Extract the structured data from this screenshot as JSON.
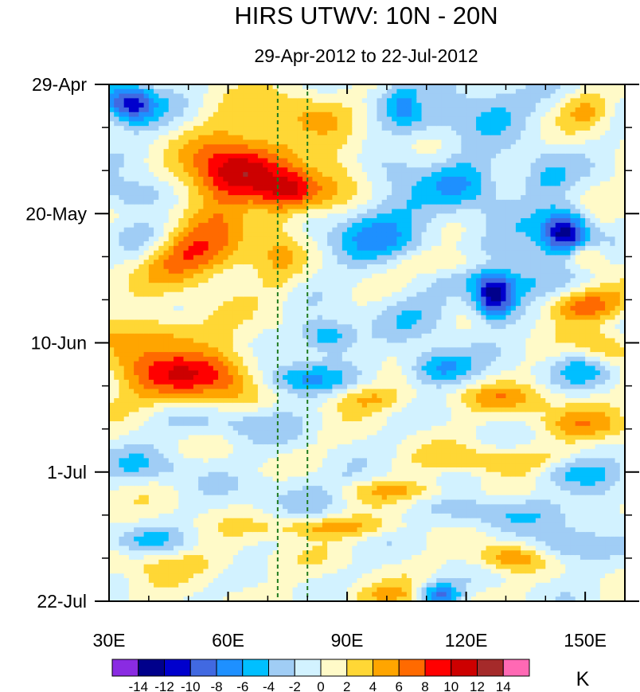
{
  "chart_data": {
    "type": "heatmap",
    "title": "HIRS UTWV: 10N - 20N",
    "subtitle": "29-Apr-2012 to 22-Jul-2012",
    "xlabel": "",
    "ylabel": "",
    "xlim": [
      30,
      160
    ],
    "x_ticks": [
      {
        "value": 30,
        "label": "30E"
      },
      {
        "value": 60,
        "label": "60E"
      },
      {
        "value": 90,
        "label": "90E"
      },
      {
        "value": 120,
        "label": "120E"
      },
      {
        "value": 150,
        "label": "150E"
      }
    ],
    "x_minor_ticks": [
      40,
      50,
      70,
      80,
      100,
      110,
      130,
      140
    ],
    "ylim_days": [
      0,
      84
    ],
    "y_ticks": [
      {
        "value": 0,
        "label": "29-Apr"
      },
      {
        "value": 21,
        "label": "20-May"
      },
      {
        "value": 42,
        "label": "10-Jun"
      },
      {
        "value": 63,
        "label": "1-Jul"
      },
      {
        "value": 84,
        "label": "22-Jul"
      }
    ],
    "y_minor_ticks": [
      7,
      14,
      28,
      35,
      49,
      56,
      70,
      77
    ],
    "reference_lines_lon": [
      72.5,
      80
    ],
    "reference_line_color": "#1e7a1e",
    "colorbar": {
      "unit": "K",
      "levels": [
        -14,
        -12,
        -10,
        -8,
        -6,
        -4,
        -2,
        0,
        2,
        4,
        6,
        8,
        10,
        12,
        14
      ],
      "labels": [
        "-14",
        "-12",
        "-10",
        "-8",
        "-6",
        "-4",
        "-2",
        "0",
        "2",
        "4",
        "6",
        "8",
        "10",
        "12",
        "14"
      ],
      "colors": [
        "#8a2be2",
        "#00008b",
        "#0000cd",
        "#4169e1",
        "#1e90ff",
        "#00bfff",
        "#a0cdf5",
        "#d2f2ff",
        "#fffac8",
        "#ffd735",
        "#ffa500",
        "#ff6a00",
        "#ff0000",
        "#cd0000",
        "#a52a2a",
        "#ff69b4"
      ]
    },
    "anomaly_features": [
      {
        "lon": 35,
        "day": 3,
        "value": -8,
        "sx": 4,
        "sy": 2
      },
      {
        "lon": 36,
        "day": 3.5,
        "value": -4,
        "sx": 7,
        "sy": 3
      },
      {
        "lon": 107,
        "day": 3,
        "value": -6,
        "sx": 6,
        "sy": 3
      },
      {
        "lon": 125,
        "day": 4,
        "value": -5,
        "sx": 8,
        "sy": 3
      },
      {
        "lon": 79,
        "day": 4,
        "value": 3,
        "sx": 7,
        "sy": 3
      },
      {
        "lon": 110,
        "day": 3,
        "value": 5,
        "sx": 3,
        "sy": 2
      },
      {
        "lon": 150,
        "day": 4,
        "value": 4,
        "sx": 4,
        "sy": 2
      },
      {
        "lon": 65,
        "day": 9,
        "value": 4,
        "sx": 9,
        "sy": 4
      },
      {
        "lon": 63,
        "day": 14,
        "value": 7,
        "sx": 8,
        "sy": 3
      },
      {
        "lon": 77,
        "day": 17.5,
        "value": 8,
        "sx": 6,
        "sy": 2.5
      },
      {
        "lon": 57,
        "day": 17,
        "value": 5,
        "sx": 7,
        "sy": 4
      },
      {
        "lon": 72,
        "day": 14.5,
        "value": -2,
        "sx": 3,
        "sy": 2
      },
      {
        "lon": 88,
        "day": 14,
        "value": 4,
        "sx": 5,
        "sy": 4
      },
      {
        "lon": 36,
        "day": 18,
        "value": -5,
        "sx": 6,
        "sy": 2
      },
      {
        "lon": 120,
        "day": 16,
        "value": -6,
        "sx": 7,
        "sy": 3
      },
      {
        "lon": 103,
        "day": 13,
        "value": -3,
        "sx": 5,
        "sy": 3
      },
      {
        "lon": 140,
        "day": 15,
        "value": -4,
        "sx": 5,
        "sy": 3
      },
      {
        "lon": 145,
        "day": 24,
        "value": -12,
        "sx": 4,
        "sy": 2.5
      },
      {
        "lon": 135,
        "day": 30,
        "value": -5,
        "sx": 10,
        "sy": 5
      },
      {
        "lon": 127,
        "day": 34.5,
        "value": -12,
        "sx": 3.5,
        "sy": 2.5
      },
      {
        "lon": 98,
        "day": 24,
        "value": -6,
        "sx": 10,
        "sy": 4
      },
      {
        "lon": 40,
        "day": 26,
        "value": -4,
        "sx": 6,
        "sy": 3
      },
      {
        "lon": 46,
        "day": 28,
        "value": 7,
        "sx": 8,
        "sy": 3
      },
      {
        "lon": 58,
        "day": 27,
        "value": 4,
        "sx": 8,
        "sy": 4
      },
      {
        "lon": 73,
        "day": 24,
        "value": 3,
        "sx": 4,
        "sy": 8
      },
      {
        "lon": 148,
        "day": 36,
        "value": 8,
        "sx": 8,
        "sy": 2
      },
      {
        "lon": 150,
        "day": 28,
        "value": 6,
        "sx": 4,
        "sy": 1.5
      },
      {
        "lon": 116,
        "day": 29,
        "value": 4,
        "sx": 10,
        "sy": 1.5
      },
      {
        "lon": 108,
        "day": 37,
        "value": -3,
        "sx": 8,
        "sy": 3
      },
      {
        "lon": 85,
        "day": 41,
        "value": -7,
        "sx": 5,
        "sy": 2
      },
      {
        "lon": 44,
        "day": 40,
        "value": 4,
        "sx": 7,
        "sy": 2
      },
      {
        "lon": 50,
        "day": 48,
        "value": 8,
        "sx": 8,
        "sy": 3
      },
      {
        "lon": 36,
        "day": 45,
        "value": 5,
        "sx": 7,
        "sy": 4
      },
      {
        "lon": 60,
        "day": 46,
        "value": 4,
        "sx": 6,
        "sy": 4
      },
      {
        "lon": 78,
        "day": 48,
        "value": -6,
        "sx": 8,
        "sy": 2
      },
      {
        "lon": 113,
        "day": 46,
        "value": -7,
        "sx": 6,
        "sy": 2
      },
      {
        "lon": 150,
        "day": 46,
        "value": -5,
        "sx": 6,
        "sy": 2
      },
      {
        "lon": 155,
        "day": 43,
        "value": 5,
        "sx": 5,
        "sy": 2
      },
      {
        "lon": 95,
        "day": 51,
        "value": 4,
        "sx": 8,
        "sy": 1.5
      },
      {
        "lon": 130,
        "day": 51,
        "value": 4,
        "sx": 10,
        "sy": 1.5
      },
      {
        "lon": 150,
        "day": 55,
        "value": 4,
        "sx": 10,
        "sy": 2
      },
      {
        "lon": 60,
        "day": 55,
        "value": -3,
        "sx": 14,
        "sy": 2
      },
      {
        "lon": 130,
        "day": 61,
        "value": 4,
        "sx": 14,
        "sy": 1.5
      },
      {
        "lon": 145,
        "day": 63,
        "value": -4,
        "sx": 7,
        "sy": 2
      },
      {
        "lon": 40,
        "day": 62,
        "value": -3,
        "sx": 10,
        "sy": 2
      },
      {
        "lon": 100,
        "day": 66,
        "value": 4,
        "sx": 14,
        "sy": 1.2
      },
      {
        "lon": 80,
        "day": 66,
        "value": -4,
        "sx": 10,
        "sy": 2
      },
      {
        "lon": 85,
        "day": 72,
        "value": 5,
        "sx": 12,
        "sy": 1.2
      },
      {
        "lon": 125,
        "day": 70,
        "value": -4,
        "sx": 10,
        "sy": 2
      },
      {
        "lon": 145,
        "day": 75,
        "value": -5,
        "sx": 6,
        "sy": 2
      },
      {
        "lon": 130,
        "day": 77,
        "value": 6,
        "sx": 6,
        "sy": 1.5
      },
      {
        "lon": 113,
        "day": 83,
        "value": -9,
        "sx": 4,
        "sy": 1.5
      },
      {
        "lon": 100,
        "day": 83,
        "value": 4,
        "sx": 8,
        "sy": 1.3
      },
      {
        "lon": 50,
        "day": 78,
        "value": 2.5,
        "sx": 15,
        "sy": 1.5
      },
      {
        "lon": 40,
        "day": 74,
        "value": -3,
        "sx": 8,
        "sy": 1.5
      },
      {
        "lon": 155,
        "day": 67,
        "value": -3,
        "sx": 5,
        "sy": 3
      }
    ]
  }
}
